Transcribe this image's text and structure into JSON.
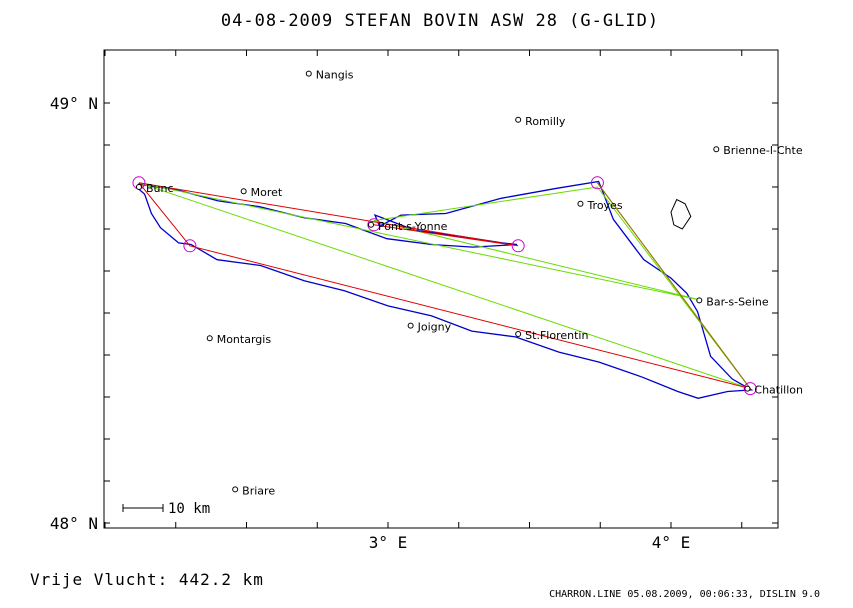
{
  "header": {
    "title": "04-08-2009   STEFAN BOVIN   ASW 28 (G-GLID)"
  },
  "map": {
    "lat_labels": [
      {
        "lat": 49.0,
        "label": "49° N"
      },
      {
        "lat": 48.0,
        "label": "48° N"
      }
    ],
    "lon_labels": [
      {
        "lon": 3.0,
        "label": "3° E"
      },
      {
        "lon": 4.0,
        "label": "4° E"
      }
    ],
    "scale_label": "10 km",
    "towns": [
      {
        "name": "Nangis",
        "lon": 2.72,
        "lat": 49.07
      },
      {
        "name": "Romilly",
        "lon": 3.46,
        "lat": 48.96
      },
      {
        "name": "Brienne-l-Chte",
        "lon": 4.16,
        "lat": 48.89
      },
      {
        "name": "Bunc",
        "lon": 2.12,
        "lat": 48.8
      },
      {
        "name": "Moret",
        "lon": 2.49,
        "lat": 48.79
      },
      {
        "name": "Troyes",
        "lon": 3.68,
        "lat": 48.76
      },
      {
        "name": "Pont-s-Yonne",
        "lon": 2.94,
        "lat": 48.71
      },
      {
        "name": "Bar-s-Seine",
        "lon": 4.1,
        "lat": 48.53
      },
      {
        "name": "Joigny",
        "lon": 3.08,
        "lat": 48.47
      },
      {
        "name": "St.Florentin",
        "lon": 3.46,
        "lat": 48.45
      },
      {
        "name": "Montargis",
        "lon": 2.37,
        "lat": 48.44
      },
      {
        "name": "Chatillon",
        "lon": 4.27,
        "lat": 48.32
      },
      {
        "name": "Briare",
        "lon": 2.46,
        "lat": 48.08
      }
    ],
    "turnpoints": [
      {
        "lon": 2.12,
        "lat": 48.81
      },
      {
        "lon": 2.3,
        "lat": 48.66
      },
      {
        "lon": 3.74,
        "lat": 48.81
      },
      {
        "lon": 3.46,
        "lat": 48.66
      },
      {
        "lon": 2.95,
        "lat": 48.71
      },
      {
        "lon": 4.28,
        "lat": 48.32
      }
    ],
    "red_route": [
      [
        2.12,
        48.81
      ],
      [
        2.3,
        48.66
      ],
      [
        4.28,
        48.32
      ],
      [
        3.74,
        48.81
      ]
    ],
    "red_route_b": [
      [
        2.12,
        48.81
      ],
      [
        3.46,
        48.66
      ],
      [
        2.95,
        48.71
      ]
    ],
    "green_route": [
      [
        2.12,
        48.81
      ],
      [
        4.11,
        48.53
      ],
      [
        2.95,
        48.72
      ],
      [
        3.74,
        48.8
      ],
      [
        4.28,
        48.32
      ],
      [
        2.12,
        48.81
      ]
    ],
    "flight_track": [
      [
        2.12,
        48.8
      ],
      [
        2.14,
        48.78
      ],
      [
        2.16,
        48.74
      ],
      [
        2.2,
        48.7
      ],
      [
        2.26,
        48.67
      ],
      [
        2.3,
        48.66
      ],
      [
        2.4,
        48.63
      ],
      [
        2.55,
        48.61
      ],
      [
        2.7,
        48.58
      ],
      [
        2.85,
        48.55
      ],
      [
        3.0,
        48.52
      ],
      [
        3.15,
        48.49
      ],
      [
        3.3,
        48.46
      ],
      [
        3.45,
        48.44
      ],
      [
        3.6,
        48.41
      ],
      [
        3.75,
        48.38
      ],
      [
        3.9,
        48.35
      ],
      [
        4.02,
        48.31
      ],
      [
        4.1,
        48.3
      ],
      [
        4.2,
        48.31
      ],
      [
        4.28,
        48.32
      ],
      [
        4.22,
        48.34
      ],
      [
        4.14,
        48.4
      ],
      [
        4.09,
        48.5
      ],
      [
        4.06,
        48.55
      ],
      [
        4.0,
        48.58
      ],
      [
        3.9,
        48.63
      ],
      [
        3.8,
        48.72
      ],
      [
        3.76,
        48.79
      ],
      [
        3.74,
        48.81
      ],
      [
        3.6,
        48.8
      ],
      [
        3.4,
        48.77
      ],
      [
        3.2,
        48.74
      ],
      [
        3.05,
        48.73
      ],
      [
        2.97,
        48.71
      ],
      [
        2.95,
        48.73
      ],
      [
        3.1,
        48.7
      ],
      [
        3.25,
        48.68
      ],
      [
        3.4,
        48.67
      ],
      [
        3.46,
        48.66
      ],
      [
        3.3,
        48.66
      ],
      [
        3.15,
        48.66
      ],
      [
        3.0,
        48.68
      ],
      [
        2.85,
        48.71
      ],
      [
        2.7,
        48.73
      ],
      [
        2.55,
        48.75
      ],
      [
        2.4,
        48.77
      ],
      [
        2.25,
        48.79
      ],
      [
        2.12,
        48.81
      ]
    ],
    "lake_outline": [
      [
        4.0,
        48.74
      ],
      [
        4.02,
        48.77
      ],
      [
        4.05,
        48.76
      ],
      [
        4.07,
        48.73
      ],
      [
        4.04,
        48.7
      ],
      [
        4.01,
        48.71
      ]
    ],
    "colors": {
      "track": "#0000cc",
      "red_route": "#dd0000",
      "green_route": "#66dd00",
      "turnpoint": "#cc00cc",
      "olive": "#888800"
    }
  },
  "footer": {
    "distance": "Vrije Vlucht:  442.2 km",
    "credits": "CHARRON.LINE 05.08.2009, 00:06:33, DISLIN 9.0"
  }
}
